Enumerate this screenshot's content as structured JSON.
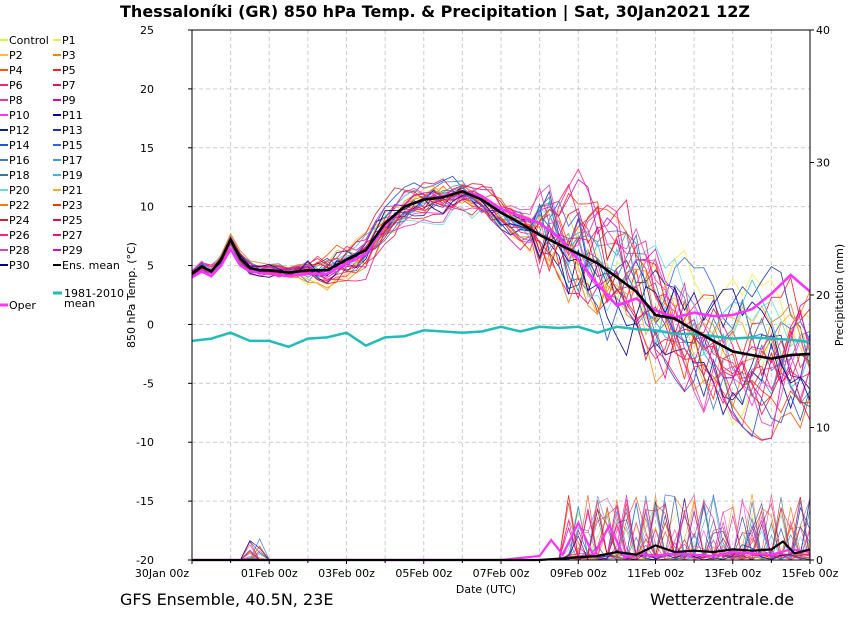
{
  "title": "Thessaloníki  (GR)  850 hPa Temp. & Precipitation | Sat, 30Jan2021 12Z",
  "footer_left": "GFS Ensemble, 40.5N, 23E",
  "footer_right": "Wetterzentrale.de",
  "colors": {
    "ens_mean": "#000000",
    "oper": "#ff33ff",
    "clim": "#22bbbb",
    "control": "#ccff33"
  },
  "chart_data": {
    "type": "line",
    "xlabel": "Date (UTC)",
    "ylabel": "850 hPa Temp. (°C)",
    "y2label": "Precipitation (mm)",
    "ylim": [
      -20,
      25
    ],
    "y2lim": [
      0,
      40
    ],
    "yticks": [
      -20,
      -15,
      -10,
      -5,
      0,
      5,
      10,
      15,
      20,
      25
    ],
    "y2ticks": [
      0,
      10,
      20,
      30,
      40
    ],
    "xlim_days": [
      0,
      16
    ],
    "xticks": [
      {
        "day": 0,
        "label": "30Jan 00z"
      },
      {
        "day": 2,
        "label": "01Feb 00z"
      },
      {
        "day": 4,
        "label": "03Feb 00z"
      },
      {
        "day": 6,
        "label": "05Feb 00z"
      },
      {
        "day": 8,
        "label": "07Feb 00z"
      },
      {
        "day": 10,
        "label": "09Feb 00z"
      },
      {
        "day": 12,
        "label": "11Feb 00z"
      },
      {
        "day": 14,
        "label": "13Feb 00z"
      },
      {
        "day": 16,
        "label": "15Feb 00z"
      }
    ],
    "grid": true,
    "legend": {
      "placement": "left",
      "members": [
        {
          "name": "Control",
          "color": "#ccff33"
        },
        {
          "name": "P1",
          "color": "#eeee44"
        },
        {
          "name": "P2",
          "color": "#ffbb33"
        },
        {
          "name": "P3",
          "color": "#ee8800"
        },
        {
          "name": "P4",
          "color": "#ff5500"
        },
        {
          "name": "P5",
          "color": "#ee2222"
        },
        {
          "name": "P6",
          "color": "#ff2266"
        },
        {
          "name": "P7",
          "color": "#ee1155"
        },
        {
          "name": "P8",
          "color": "#ee3399"
        },
        {
          "name": "P9",
          "color": "#dd00aa"
        },
        {
          "name": "P10",
          "color": "#ff33ff"
        },
        {
          "name": "P11",
          "color": "#0000aa"
        },
        {
          "name": "P12",
          "color": "#112299"
        },
        {
          "name": "P13",
          "color": "#2233aa"
        },
        {
          "name": "P14",
          "color": "#2255cc"
        },
        {
          "name": "P15",
          "color": "#3366dd"
        },
        {
          "name": "P16",
          "color": "#4477bb"
        },
        {
          "name": "P17",
          "color": "#4499dd"
        },
        {
          "name": "P18",
          "color": "#3377aa"
        },
        {
          "name": "P19",
          "color": "#33bbdd"
        },
        {
          "name": "P20",
          "color": "#66dddd"
        },
        {
          "name": "P21",
          "color": "#ffaa22"
        },
        {
          "name": "P22",
          "color": "#ff7711"
        },
        {
          "name": "P23",
          "color": "#ff3300"
        },
        {
          "name": "P24",
          "color": "#cc2233"
        },
        {
          "name": "P25",
          "color": "#dd1144"
        },
        {
          "name": "P26",
          "color": "#ff2288"
        },
        {
          "name": "P27",
          "color": "#ee1177"
        },
        {
          "name": "P28",
          "color": "#dd44bb"
        },
        {
          "name": "P29",
          "color": "#cc11cc"
        },
        {
          "name": "P30",
          "color": "#000088"
        },
        {
          "name": "Ens. mean",
          "color": "#000000"
        }
      ],
      "oper": {
        "name": "Oper",
        "color": "#ff33ff"
      },
      "clim": {
        "name": "1981-2010",
        "name2": "mean",
        "color": "#22bbbb"
      }
    },
    "series_ensemble_mean": {
      "name": "Ens. mean",
      "x_days": [
        0,
        0.25,
        0.5,
        0.75,
        1,
        1.25,
        1.5,
        1.75,
        2,
        2.5,
        3,
        3.5,
        4,
        4.5,
        5,
        5.5,
        6,
        6.5,
        7,
        7.5,
        8,
        8.5,
        9,
        9.5,
        10,
        10.5,
        11,
        11.5,
        12,
        12.5,
        13,
        13.5,
        14,
        14.5,
        15,
        15.5,
        16
      ],
      "y": [
        4.3,
        4.9,
        4.5,
        5.5,
        7.2,
        5.6,
        4.8,
        4.6,
        4.6,
        4.4,
        4.6,
        4.6,
        5.5,
        6.3,
        8.6,
        10.0,
        10.6,
        10.8,
        11.3,
        10.6,
        9.5,
        8.6,
        7.6,
        6.8,
        6.0,
        5.2,
        4.0,
        2.8,
        0.8,
        0.5,
        -0.5,
        -1.4,
        -2.3,
        -2.6,
        -2.9,
        -2.6,
        -2.5
      ]
    },
    "series_oper": {
      "name": "Oper",
      "x_days": [
        0,
        0.25,
        0.5,
        0.75,
        1,
        1.25,
        1.5,
        1.75,
        2,
        2.5,
        3,
        3.5,
        4,
        4.5,
        5,
        5.5,
        6,
        6.5,
        7,
        7.5,
        8,
        8.5,
        9,
        9.5,
        10,
        10.5,
        11,
        11.5,
        12,
        12.5,
        13,
        13.5,
        14,
        14.5,
        15,
        15.5,
        16
      ],
      "y": [
        4.0,
        4.5,
        4.1,
        5.0,
        6.4,
        5.0,
        4.5,
        4.4,
        4.3,
        4.1,
        4.3,
        4.3,
        5.2,
        6.0,
        8.4,
        10.0,
        10.6,
        10.9,
        11.3,
        10.9,
        9.8,
        9.2,
        8.6,
        7.4,
        5.5,
        3.4,
        1.6,
        2.2,
        1.2,
        0.6,
        1.0,
        0.7,
        0.8,
        1.3,
        2.6,
        4.2,
        2.8
      ]
    },
    "series_clim": {
      "name": "1981-2010 mean",
      "x_days": [
        0,
        0.5,
        1,
        1.5,
        2,
        2.5,
        3,
        3.5,
        4,
        4.5,
        5,
        5.5,
        6,
        6.5,
        7,
        7.5,
        8,
        8.5,
        9,
        9.5,
        10,
        10.5,
        11,
        11.5,
        12,
        12.5,
        13,
        13.5,
        14,
        14.5,
        15,
        15.5,
        16
      ],
      "y": [
        -1.4,
        -1.2,
        -0.7,
        -1.4,
        -1.4,
        -1.9,
        -1.2,
        -1.1,
        -0.7,
        -1.8,
        -1.1,
        -1.0,
        -0.5,
        -0.6,
        -0.7,
        -0.6,
        -0.2,
        -0.6,
        -0.2,
        -0.3,
        -0.2,
        -0.7,
        -0.2,
        -0.4,
        -0.5,
        -0.8,
        -0.8,
        -1.0,
        -1.2,
        -1.1,
        -1.2,
        -1.3,
        -1.5
      ]
    },
    "precip_mean": {
      "x_days": [
        0,
        1,
        2,
        3,
        4,
        5,
        6,
        7,
        8,
        9,
        10,
        10.5,
        11,
        11.5,
        12,
        12.5,
        13,
        13.5,
        14,
        14.5,
        15,
        15.3,
        15.6,
        16
      ],
      "y_mm": [
        0,
        0,
        0,
        0,
        0,
        0,
        0,
        0,
        0,
        0,
        0.2,
        0.3,
        0.6,
        0.4,
        1.1,
        0.6,
        0.7,
        0.6,
        0.8,
        0.7,
        0.8,
        1.4,
        0.5,
        0.8
      ]
    },
    "precip_oper": {
      "x_days": [
        0,
        2,
        4,
        6,
        8,
        9,
        9.3,
        9.6,
        10,
        10.4,
        10.8,
        11.2,
        11.6,
        12,
        12.5,
        13,
        13.5,
        14,
        14.5,
        15,
        15.5,
        16
      ],
      "y_mm": [
        0,
        0,
        0,
        0,
        0,
        0.3,
        1.5,
        0.4,
        2.8,
        0.3,
        2.6,
        0.2,
        0.5,
        0.3,
        0.5,
        0.4,
        0.3,
        0.6,
        0.5,
        0.4,
        0.8,
        0.6
      ]
    }
  }
}
